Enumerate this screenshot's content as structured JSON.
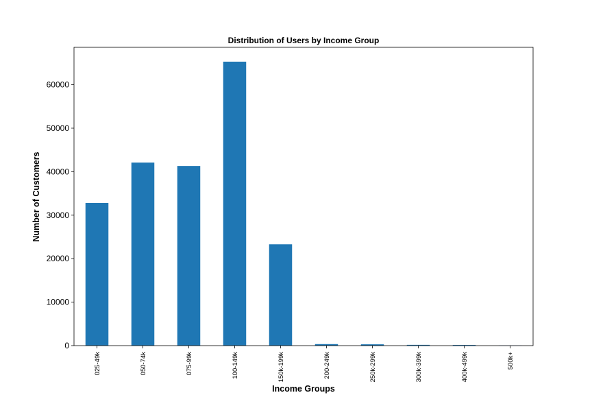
{
  "chart_data": {
    "type": "bar",
    "title": "Distribution of Users by Income Group",
    "xlabel": "Income Groups",
    "ylabel": "Number of Customers",
    "categories": [
      "025-49k",
      "050-74k",
      "075-99k",
      "100-149k",
      "150k-199k",
      "200-249k",
      "250k-299k",
      "300k-399k",
      "400k-499k",
      "500k+"
    ],
    "values": [
      32800,
      42100,
      41300,
      65300,
      23300,
      350,
      300,
      180,
      150,
      40
    ],
    "yticks": [
      0,
      10000,
      20000,
      30000,
      40000,
      50000,
      60000
    ],
    "ylim": [
      0,
      68600
    ],
    "grid": false,
    "legend": "none",
    "bar_color": "#1f77b4"
  }
}
